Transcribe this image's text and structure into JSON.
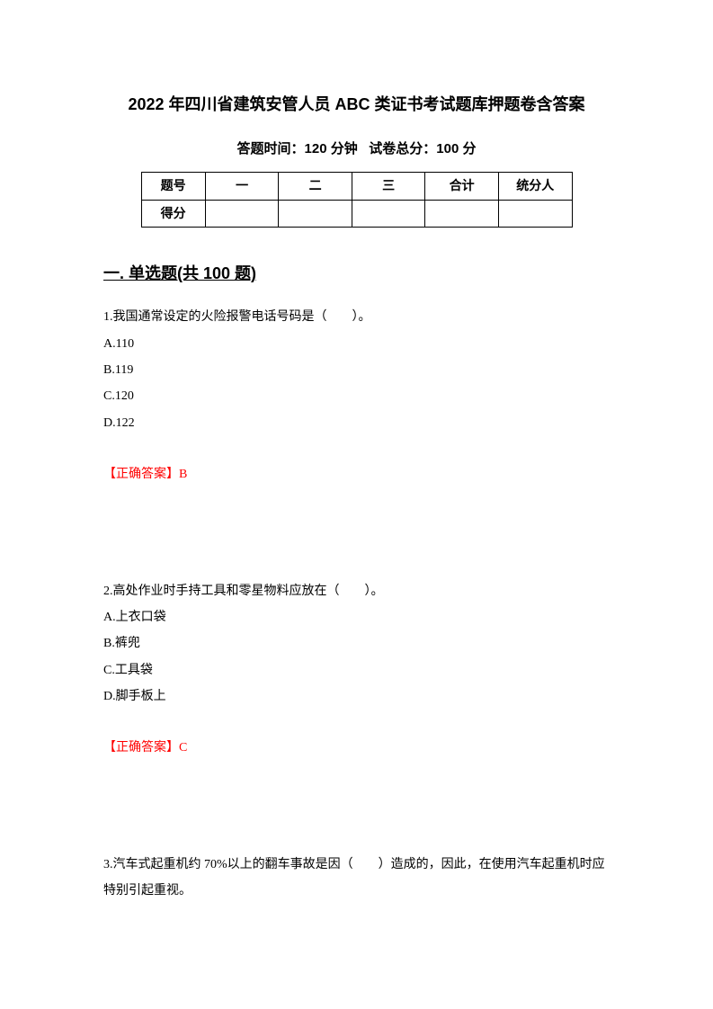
{
  "title": "2022 年四川省建筑安管人员 ABC 类证书考试题库押题卷含答案",
  "subtitle_time_label": "答题时间：",
  "subtitle_time_value": "120 分钟",
  "subtitle_score_label": "试卷总分：",
  "subtitle_score_value": "100 分",
  "table": {
    "headers": [
      "题号",
      "一",
      "二",
      "三",
      "合计",
      "统分人"
    ],
    "row_label": "得分",
    "row_cells": [
      "",
      "",
      "",
      "",
      ""
    ]
  },
  "section_title": "一. 单选题(共 100 题)",
  "questions": [
    {
      "stem": "1.我国通常设定的火险报警电话号码是（　　）。",
      "options": [
        "A.110",
        "B.119",
        "C.120",
        "D.122"
      ],
      "answer_label": "【正确答案】",
      "answer_value": "B"
    },
    {
      "stem": "2.高处作业时手持工具和零星物料应放在（　　）。",
      "options": [
        "A.上衣口袋",
        "B.裤兜",
        "C.工具袋",
        "D.脚手板上"
      ],
      "answer_label": "【正确答案】",
      "answer_value": "C"
    },
    {
      "stem": "3.汽车式起重机约 70%以上的翻车事故是因（　　）造成的，因此，在使用汽车起重机时应特别引起重视。",
      "options": [],
      "answer_label": "",
      "answer_value": ""
    }
  ],
  "colors": {
    "text": "#000000",
    "answer": "#ff0000",
    "background": "#ffffff",
    "border": "#000000"
  }
}
